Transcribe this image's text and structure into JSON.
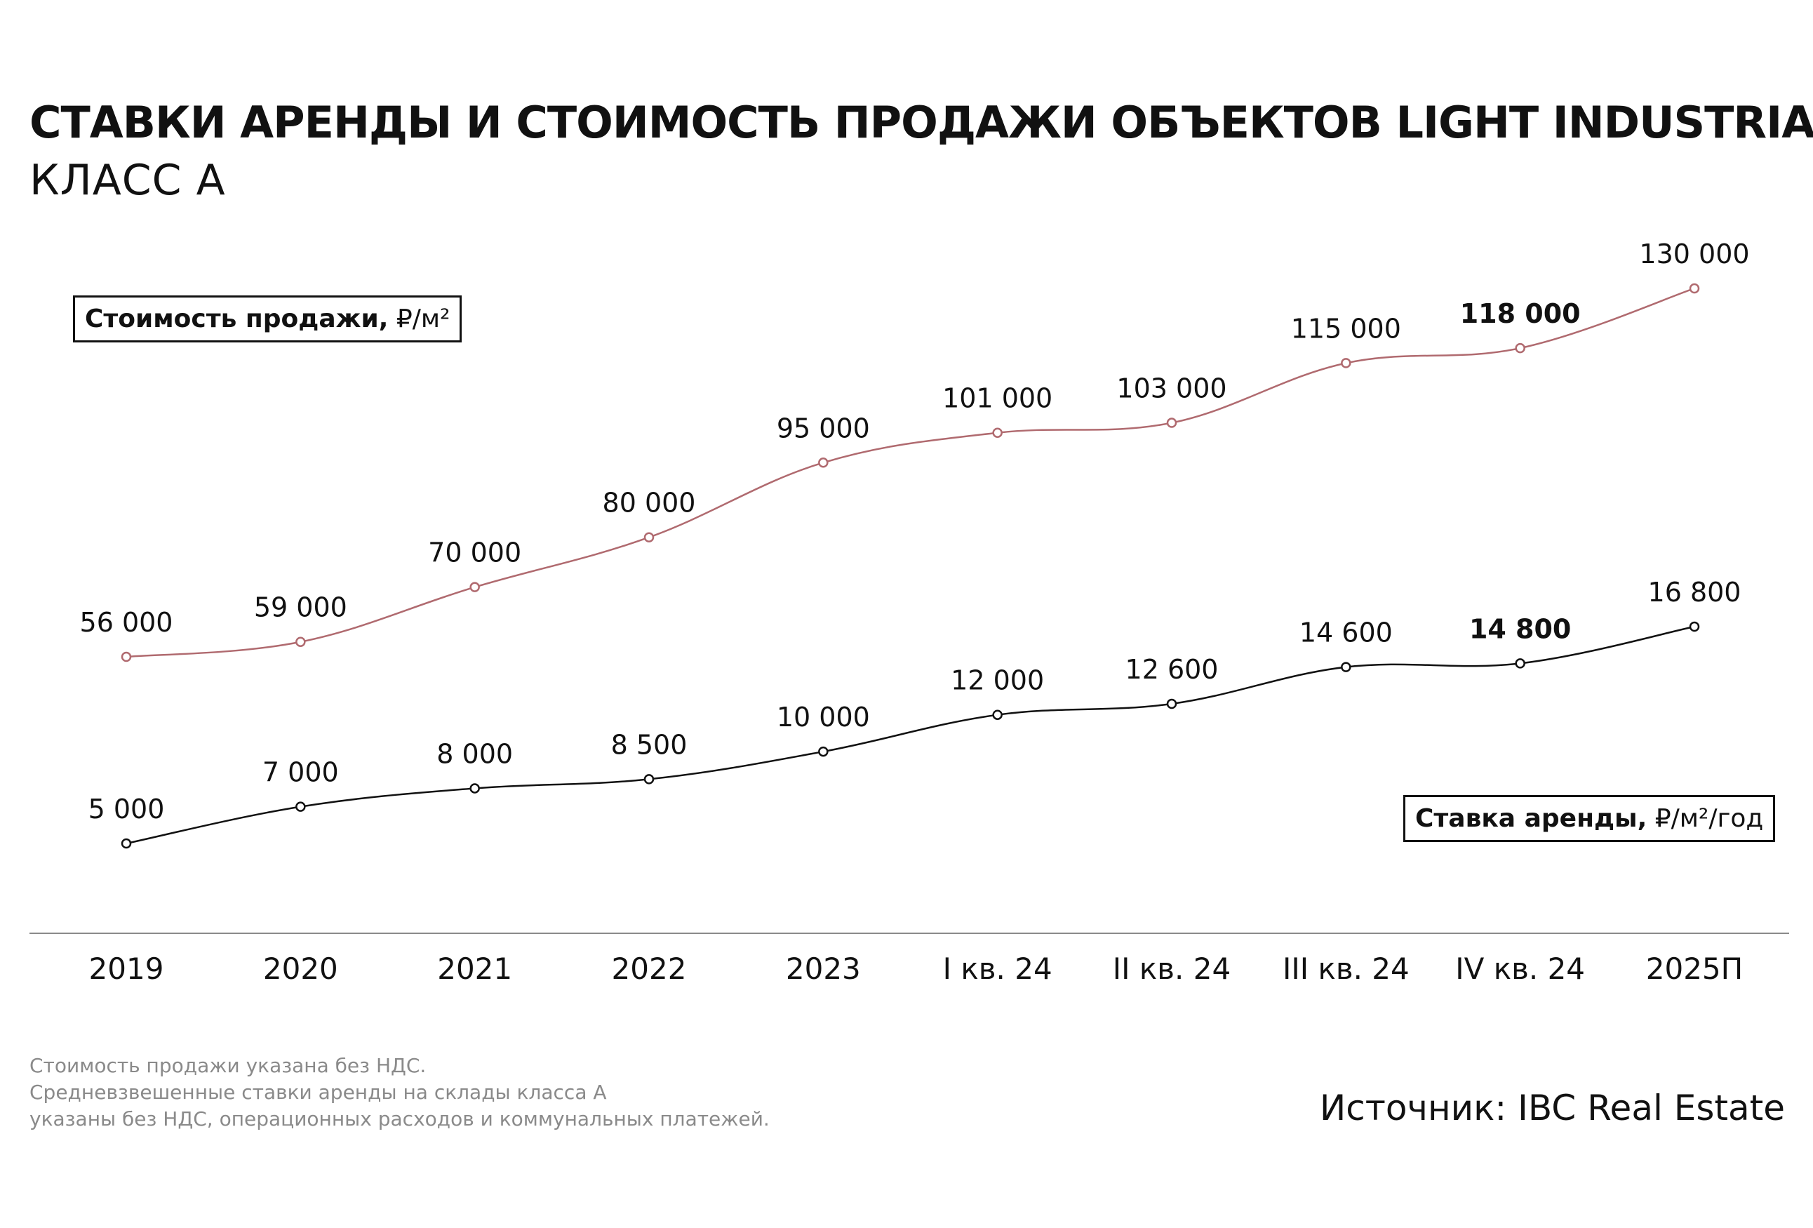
{
  "title": "СТАВКИ АРЕНДЫ И СТОИМОСТЬ ПРОДАЖИ ОБЪЕКТОВ LIGHT INDUSTRIAL",
  "subtitle": "КЛАСС А",
  "legend": {
    "sale": {
      "name": "Стоимость продажи,",
      "unit": "₽/м²"
    },
    "rent": {
      "name": "Ставка аренды,",
      "unit": "₽/м²/год"
    }
  },
  "notes": [
    "Стоимость продажи указана без НДС.",
    "Средневзвешенные ставки аренды на склады класса А",
    "указаны без НДС, операционных расходов и коммунальных платежей."
  ],
  "source": "Источник: IBC Real Estate",
  "colors": {
    "sale": "#b06a6f",
    "rent": "#111111",
    "axis": "#8a8a8a"
  },
  "chart_data": {
    "type": "line",
    "categories": [
      "2019",
      "2020",
      "2021",
      "2022",
      "2023",
      "I кв. 24",
      "II кв. 24",
      "III кв. 24",
      "IV кв. 24",
      "2025П"
    ],
    "series": [
      {
        "name": "Стоимость продажи, ₽/м²",
        "values": [
          56000,
          59000,
          70000,
          80000,
          95000,
          101000,
          103000,
          115000,
          118000,
          130000
        ],
        "labels": [
          "56 000",
          "59 000",
          "70 000",
          "80 000",
          "95 000",
          "101 000",
          "103 000",
          "115 000",
          "118 000",
          "130 000"
        ],
        "highlight_index": 8
      },
      {
        "name": "Ставка аренды, ₽/м²/год",
        "values": [
          5000,
          7000,
          8000,
          8500,
          10000,
          12000,
          12600,
          14600,
          14800,
          16800
        ],
        "labels": [
          "5 000",
          "7 000",
          "8 000",
          "8 500",
          "10 000",
          "12 000",
          "12 600",
          "14 600",
          "14 800",
          "16 800"
        ],
        "highlight_index": 8
      }
    ],
    "grid": false,
    "legend_placement": "inline-boxes"
  }
}
